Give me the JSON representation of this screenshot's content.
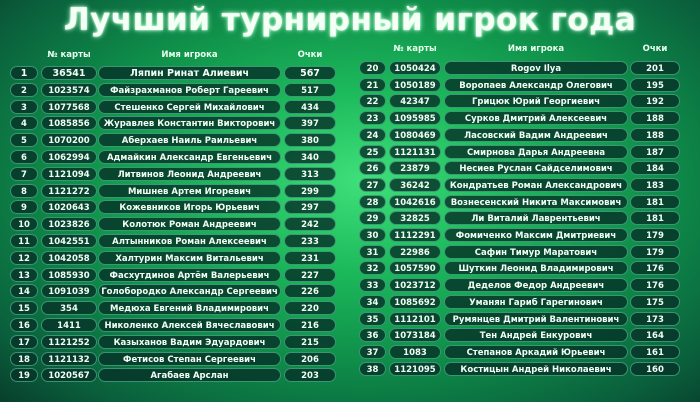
{
  "title": "Лучший турнирный игрок года",
  "headers": {
    "card": "№ карты",
    "name": "Имя игрока",
    "points": "Очки"
  },
  "left": [
    {
      "rank": "1",
      "card": "36541",
      "name": "Ляпин Ринат Алиевич",
      "points": "567"
    },
    {
      "rank": "2",
      "card": "1023574",
      "name": "Файзрахманов Роберт Гареевич",
      "points": "517"
    },
    {
      "rank": "3",
      "card": "1077568",
      "name": "Стешенко Сергей Михайлович",
      "points": "434"
    },
    {
      "rank": "4",
      "card": "1085856",
      "name": "Журавлев Константин Викторович",
      "points": "397"
    },
    {
      "rank": "5",
      "card": "1070200",
      "name": "Аберхаев Наиль Раильевич",
      "points": "380"
    },
    {
      "rank": "6",
      "card": "1062994",
      "name": "Адмайкин Александр Евгеньевич",
      "points": "340"
    },
    {
      "rank": "7",
      "card": "1121094",
      "name": "Литвинов Леонид Андреевич",
      "points": "313"
    },
    {
      "rank": "8",
      "card": "1121272",
      "name": "Мишнев Артем Игоревич",
      "points": "299"
    },
    {
      "rank": "9",
      "card": "1020643",
      "name": "Кожевников Игорь Юрьевич",
      "points": "297"
    },
    {
      "rank": "10",
      "card": "1023826",
      "name": "Колотюк Роман Андреевич",
      "points": "242"
    },
    {
      "rank": "11",
      "card": "1042551",
      "name": "Алтынников Роман Алексеевич",
      "points": "233"
    },
    {
      "rank": "12",
      "card": "1042058",
      "name": "Халтурин Максим Витальевич",
      "points": "231"
    },
    {
      "rank": "13",
      "card": "1085930",
      "name": "Фасхутдинов Артём Валерьевич",
      "points": "227"
    },
    {
      "rank": "14",
      "card": "1091039",
      "name": "Голобородко Александр Сергеевич",
      "points": "226"
    },
    {
      "rank": "15",
      "card": "354",
      "name": "Медюха Евгений Владимирович",
      "points": "220"
    },
    {
      "rank": "16",
      "card": "1411",
      "name": "Николенко Алексей Вячеславович",
      "points": "216"
    },
    {
      "rank": "17",
      "card": "1121252",
      "name": "Казыханов Вадим Эдуардович",
      "points": "215"
    },
    {
      "rank": "18",
      "card": "1121132",
      "name": "Фетисов Степан Сергеевич",
      "points": "206"
    },
    {
      "rank": "19",
      "card": "1020567",
      "name": "Агабаев Арслан",
      "points": "203"
    }
  ],
  "right": [
    {
      "rank": "20",
      "card": "1050424",
      "name": "Rogov Ilya",
      "points": "201"
    },
    {
      "rank": "21",
      "card": "1050189",
      "name": "Воропаев Александр Олегович",
      "points": "195"
    },
    {
      "rank": "22",
      "card": "42347",
      "name": "Грицюк Юрий Георгиевич",
      "points": "192"
    },
    {
      "rank": "23",
      "card": "1095985",
      "name": "Сурков Дмитрий Алексеевич",
      "points": "188"
    },
    {
      "rank": "24",
      "card": "1080469",
      "name": "Ласовский Вадим Андреевич",
      "points": "188"
    },
    {
      "rank": "25",
      "card": "1121131",
      "name": "Смирнова Дарья Андреевна",
      "points": "187"
    },
    {
      "rank": "26",
      "card": "23879",
      "name": "Несиев Руслан Сайдселимович",
      "points": "184"
    },
    {
      "rank": "27",
      "card": "36242",
      "name": "Кондратьев Роман Александрович",
      "points": "183"
    },
    {
      "rank": "28",
      "card": "1042616",
      "name": "Вознесенский Никита Максимович",
      "points": "181"
    },
    {
      "rank": "29",
      "card": "32825",
      "name": "Ли Виталий Лаврентьевич",
      "points": "181"
    },
    {
      "rank": "30",
      "card": "1112291",
      "name": "Фомиченко Максим Дмитриевич",
      "points": "179"
    },
    {
      "rank": "31",
      "card": "22986",
      "name": "Сафин Тимур Маратович",
      "points": "179"
    },
    {
      "rank": "32",
      "card": "1057590",
      "name": "Шуткин Леонид Владимирович",
      "points": "176"
    },
    {
      "rank": "33",
      "card": "1023712",
      "name": "Деделов Федор Андреевич",
      "points": "176"
    },
    {
      "rank": "34",
      "card": "1085692",
      "name": "Уманян Гариб Гарегинович",
      "points": "175"
    },
    {
      "rank": "35",
      "card": "1112101",
      "name": "Румянцев Дмитрий Валентинович",
      "points": "173"
    },
    {
      "rank": "36",
      "card": "1073184",
      "name": "Тен Андрей Енкурович",
      "points": "164"
    },
    {
      "rank": "37",
      "card": "1083",
      "name": "Степанов Аркадий Юрьевич",
      "points": "161"
    },
    {
      "rank": "38",
      "card": "1121095",
      "name": "Костицын Андрей Николаевич",
      "points": "160"
    }
  ]
}
